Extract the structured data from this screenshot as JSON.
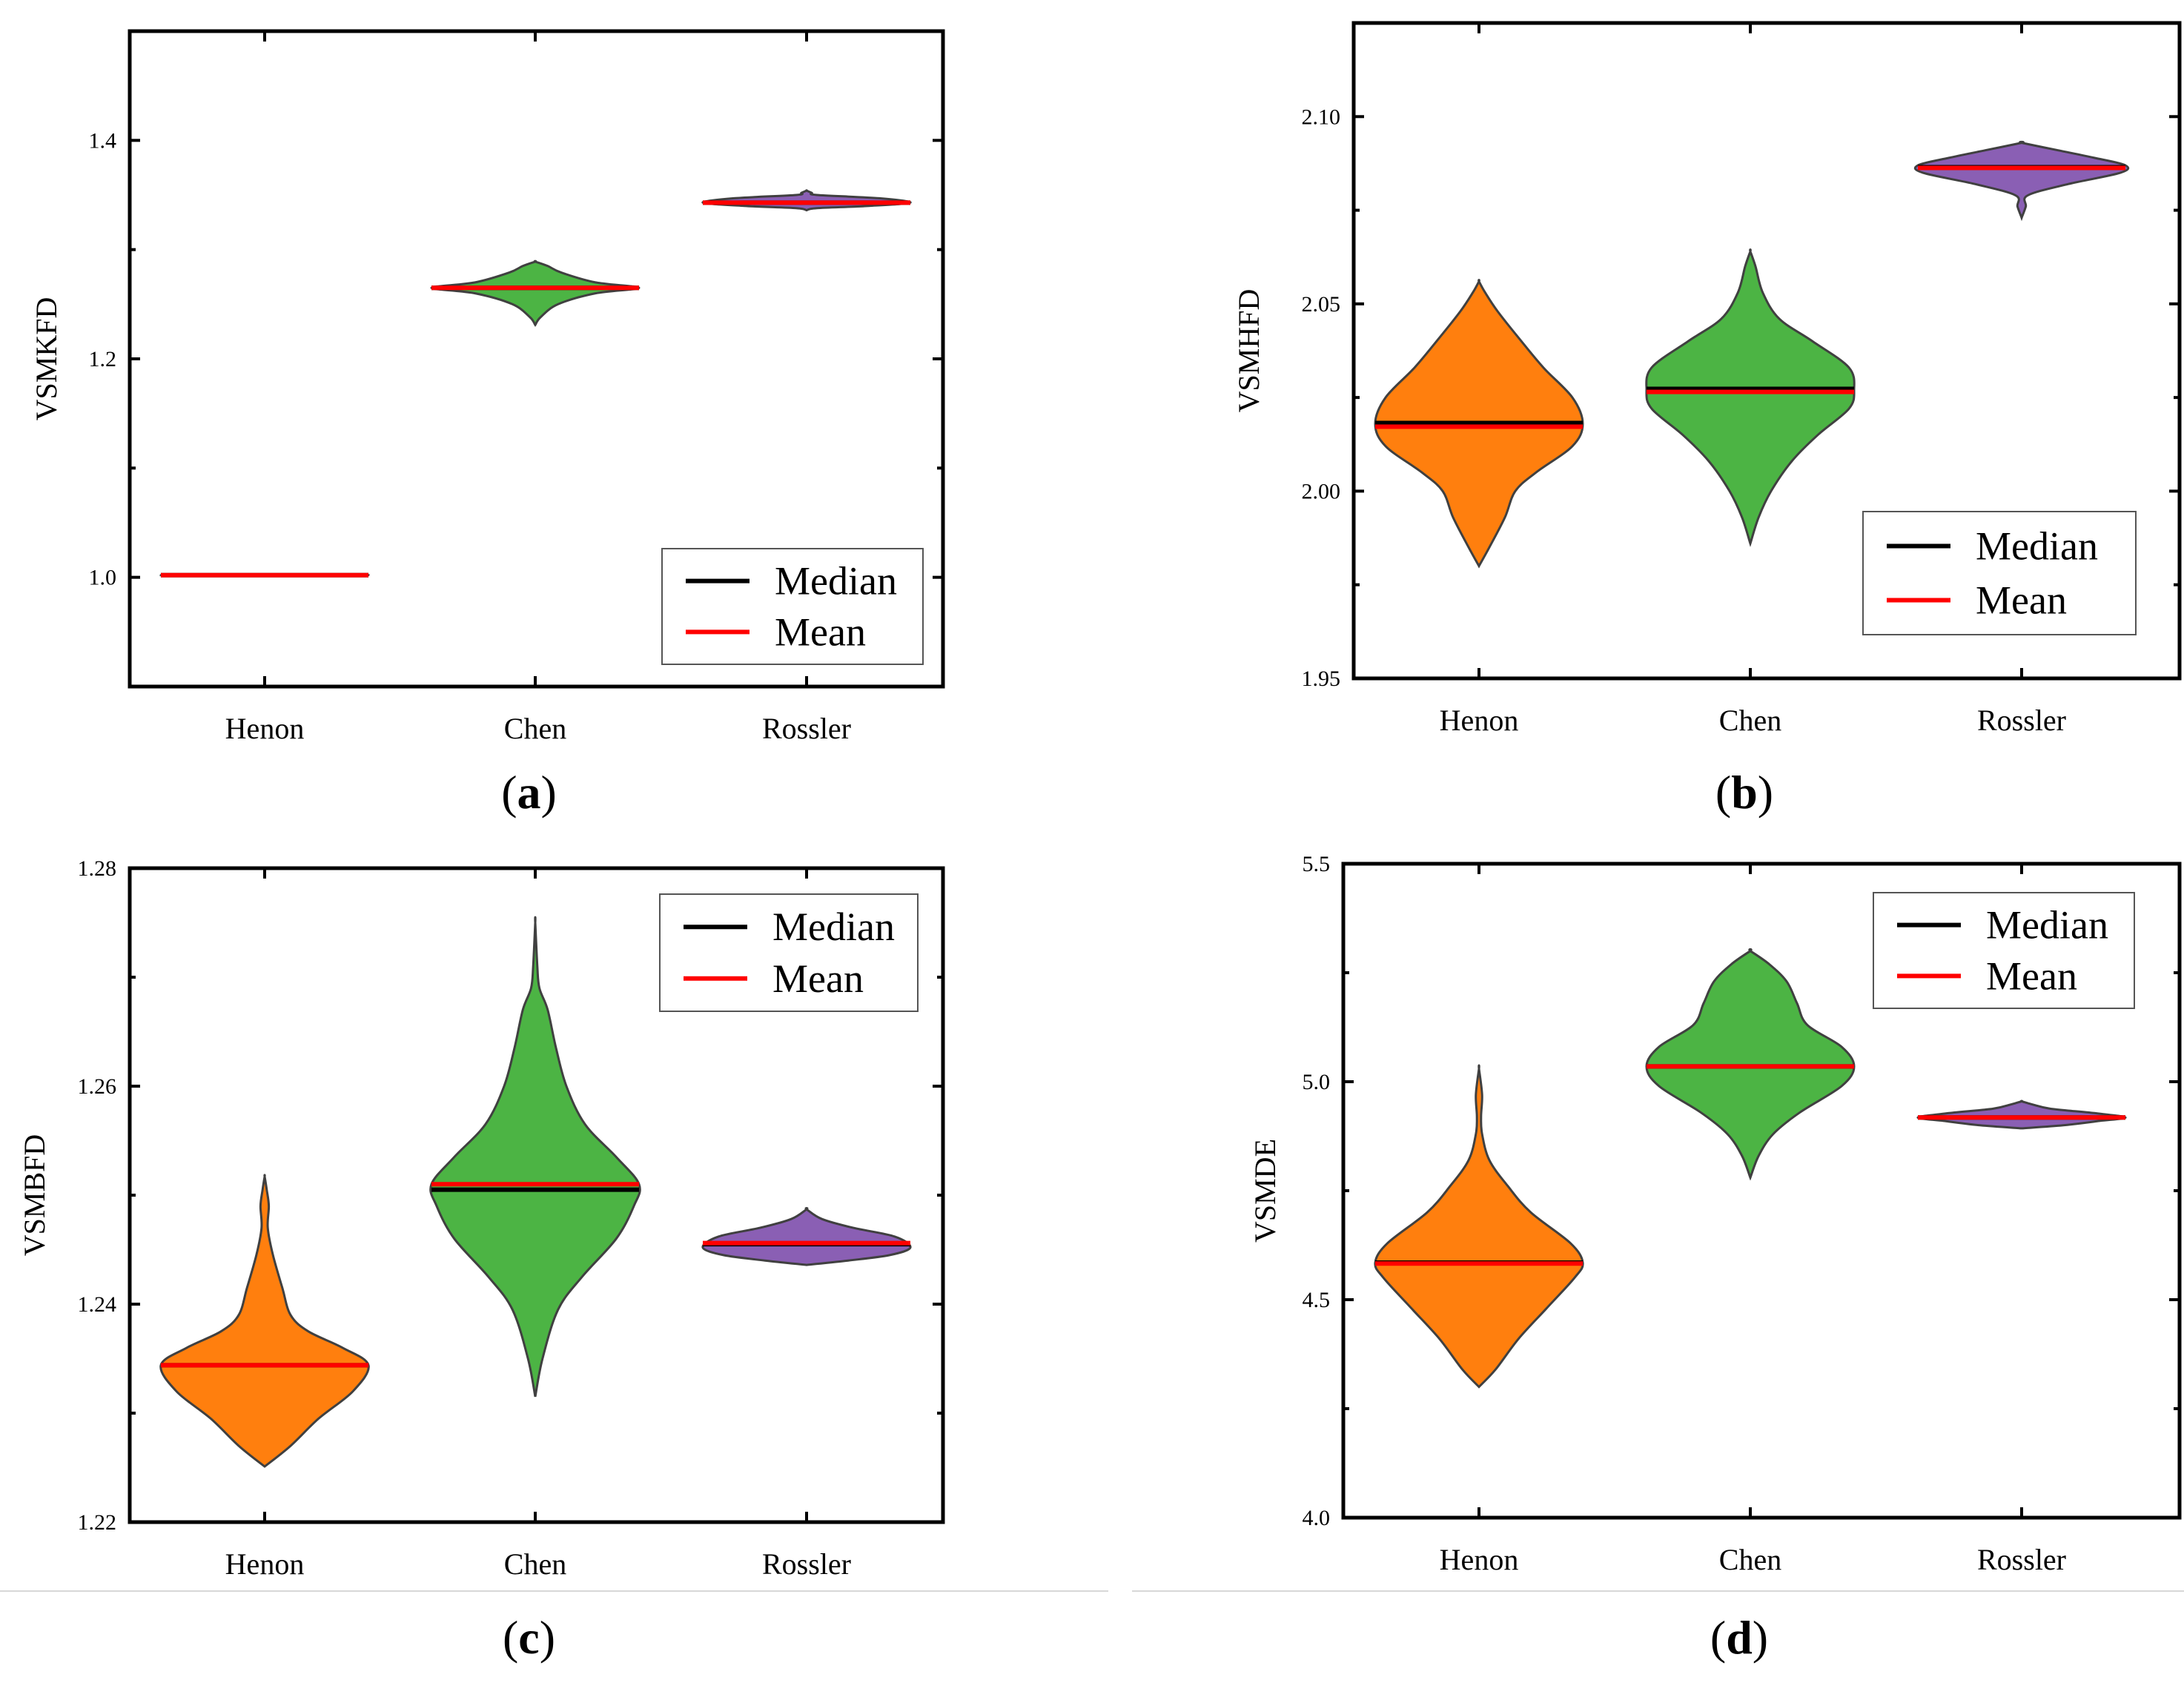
{
  "figure": {
    "panel_labels": [
      {
        "id": "a",
        "text": "a"
      },
      {
        "id": "b",
        "text": "b"
      },
      {
        "id": "c",
        "text": "c"
      },
      {
        "id": "d",
        "text": "d"
      }
    ]
  },
  "colors": {
    "Henon": "#ff7f0e",
    "Chen": "#4cb444",
    "Rossler": "#8a5fb4",
    "median": "#000000",
    "mean": "#ff0000"
  },
  "chart_data": [
    {
      "id": "a",
      "type": "violin",
      "title": "",
      "xlabel": "",
      "ylabel": "VSMKFD",
      "categories": [
        "Henon",
        "Chen",
        "Rossler"
      ],
      "ylim": [
        0.9,
        1.5
      ],
      "yticks": [
        1.0,
        1.2,
        1.4
      ],
      "ytick_labels": [
        "1.0",
        "1.2",
        "1.4"
      ],
      "legend": {
        "position": "bottom-right",
        "entries": [
          "Median",
          "Mean"
        ]
      },
      "series": [
        {
          "name": "Henon",
          "color": "#ff7f0e",
          "median": 1.002,
          "mean": 1.002,
          "profile": [
            [
              1.0016,
              0
            ],
            [
              1.002,
              1
            ],
            [
              1.0024,
              0
            ]
          ]
        },
        {
          "name": "Chen",
          "color": "#4cb444",
          "median": 1.265,
          "mean": 1.265,
          "profile": [
            [
              1.231,
              0
            ],
            [
              1.238,
              0.05
            ],
            [
              1.25,
              0.22
            ],
            [
              1.26,
              0.58
            ],
            [
              1.265,
              1
            ],
            [
              1.27,
              0.58
            ],
            [
              1.279,
              0.25
            ],
            [
              1.285,
              0.12
            ],
            [
              1.289,
              0
            ]
          ]
        },
        {
          "name": "Rossler",
          "color": "#8a5fb4",
          "median": 1.343,
          "mean": 1.343,
          "profile": [
            [
              1.336,
              0
            ],
            [
              1.338,
              0.1
            ],
            [
              1.34,
              0.6
            ],
            [
              1.343,
              1
            ],
            [
              1.347,
              0.7
            ],
            [
              1.35,
              0.1
            ],
            [
              1.352,
              0.05
            ],
            [
              1.354,
              0
            ]
          ]
        }
      ]
    },
    {
      "id": "b",
      "type": "violin",
      "title": "",
      "xlabel": "",
      "ylabel": "VSMHFD",
      "categories": [
        "Henon",
        "Chen",
        "Rossler"
      ],
      "ylim": [
        1.95,
        2.125
      ],
      "yticks": [
        1.95,
        2.0,
        2.05,
        2.1
      ],
      "ytick_labels": [
        "1.95",
        "2.00",
        "2.05",
        "2.10"
      ],
      "legend": {
        "position": "bottom-right",
        "entries": [
          "Median",
          "Mean"
        ]
      },
      "series": [
        {
          "name": "Henon",
          "color": "#ff7f0e",
          "median": 2.0182,
          "mean": 2.0172,
          "profile": [
            [
              1.98,
              0
            ],
            [
              1.985,
              0.1
            ],
            [
              1.993,
              0.25
            ],
            [
              2.0,
              0.35
            ],
            [
              2.005,
              0.55
            ],
            [
              2.012,
              0.9
            ],
            [
              2.018,
              1
            ],
            [
              2.025,
              0.9
            ],
            [
              2.033,
              0.62
            ],
            [
              2.041,
              0.38
            ],
            [
              2.048,
              0.18
            ],
            [
              2.053,
              0.06
            ],
            [
              2.056,
              0
            ]
          ]
        },
        {
          "name": "Chen",
          "color": "#4cb444",
          "median": 2.0273,
          "mean": 2.0265,
          "profile": [
            [
              1.986,
              0
            ],
            [
              1.993,
              0.08
            ],
            [
              2.0,
              0.2
            ],
            [
              2.008,
              0.4
            ],
            [
              2.015,
              0.65
            ],
            [
              2.022,
              0.95
            ],
            [
              2.027,
              1
            ],
            [
              2.033,
              0.95
            ],
            [
              2.04,
              0.6
            ],
            [
              2.046,
              0.28
            ],
            [
              2.053,
              0.12
            ],
            [
              2.06,
              0.05
            ],
            [
              2.064,
              0
            ]
          ]
        },
        {
          "name": "Rossler",
          "color": "#8a5fb4",
          "median": 2.0865,
          "mean": 2.0863,
          "profile": [
            [
              2.073,
              0
            ],
            [
              2.076,
              0.04
            ],
            [
              2.079,
              0.06
            ],
            [
              2.082,
              0.45
            ],
            [
              2.085,
              0.95
            ],
            [
              2.087,
              1
            ],
            [
              2.089,
              0.7
            ],
            [
              2.091,
              0.35
            ],
            [
              2.093,
              0
            ]
          ]
        }
      ]
    },
    {
      "id": "c",
      "type": "violin",
      "title": "",
      "xlabel": "",
      "ylabel": "VSMBFD",
      "categories": [
        "Henon",
        "Chen",
        "Rossler"
      ],
      "ylim": [
        1.22,
        1.28
      ],
      "yticks": [
        1.22,
        1.24,
        1.26,
        1.28
      ],
      "ytick_labels": [
        "1.22",
        "1.24",
        "1.26",
        "1.28"
      ],
      "legend": {
        "position": "top-right",
        "entries": [
          "Median",
          "Mean"
        ]
      },
      "series": [
        {
          "name": "Henon",
          "color": "#ff7f0e",
          "median": 1.2344,
          "mean": 1.2344,
          "profile": [
            [
              1.2251,
              0
            ],
            [
              1.227,
              0.25
            ],
            [
              1.2295,
              0.52
            ],
            [
              1.232,
              0.85
            ],
            [
              1.2344,
              1
            ],
            [
              1.236,
              0.75
            ],
            [
              1.2375,
              0.42
            ],
            [
              1.239,
              0.25
            ],
            [
              1.2415,
              0.17
            ],
            [
              1.2445,
              0.08
            ],
            [
              1.247,
              0.03
            ],
            [
              1.249,
              0.04
            ],
            [
              1.2505,
              0.02
            ],
            [
              1.2517,
              0
            ]
          ]
        },
        {
          "name": "Chen",
          "color": "#4cb444",
          "median": 1.2505,
          "mean": 1.251,
          "profile": [
            [
              1.2315,
              0
            ],
            [
              1.235,
              0.07
            ],
            [
              1.2395,
              0.22
            ],
            [
              1.2425,
              0.45
            ],
            [
              1.246,
              0.78
            ],
            [
              1.249,
              0.95
            ],
            [
              1.251,
              1
            ],
            [
              1.2535,
              0.78
            ],
            [
              1.2565,
              0.48
            ],
            [
              1.26,
              0.3
            ],
            [
              1.2635,
              0.2
            ],
            [
              1.267,
              0.12
            ],
            [
              1.269,
              0.04
            ],
            [
              1.271,
              0.02
            ],
            [
              1.275,
              0
            ]
          ]
        },
        {
          "name": "Rossler",
          "color": "#8a5fb4",
          "median": 1.2455,
          "mean": 1.2456,
          "profile": [
            [
              1.2436,
              0
            ],
            [
              1.244,
              0.4
            ],
            [
              1.2445,
              0.8
            ],
            [
              1.2452,
              1
            ],
            [
              1.2462,
              0.85
            ],
            [
              1.247,
              0.45
            ],
            [
              1.2478,
              0.15
            ],
            [
              1.2487,
              0
            ]
          ]
        }
      ]
    },
    {
      "id": "d",
      "type": "violin",
      "title": "",
      "xlabel": "",
      "ylabel": "VSMDE",
      "categories": [
        "Henon",
        "Chen",
        "Rossler"
      ],
      "ylim": [
        4.0,
        5.5
      ],
      "yticks": [
        4.0,
        4.5,
        5.0,
        5.5
      ],
      "ytick_labels": [
        "4.0",
        "4.5",
        "5.0",
        "5.5"
      ],
      "legend": {
        "position": "top-right",
        "entries": [
          "Median",
          "Mean"
        ]
      },
      "series": [
        {
          "name": "Henon",
          "color": "#ff7f0e",
          "median": 4.585,
          "mean": 4.583,
          "profile": [
            [
              4.3,
              0
            ],
            [
              4.34,
              0.16
            ],
            [
              4.41,
              0.38
            ],
            [
              4.48,
              0.65
            ],
            [
              4.55,
              0.92
            ],
            [
              4.585,
              1
            ],
            [
              4.63,
              0.88
            ],
            [
              4.7,
              0.5
            ],
            [
              4.76,
              0.28
            ],
            [
              4.82,
              0.1
            ],
            [
              4.88,
              0.03
            ],
            [
              4.92,
              0.02
            ],
            [
              4.97,
              0.03
            ],
            [
              5.03,
              0
            ]
          ]
        },
        {
          "name": "Chen",
          "color": "#4cb444",
          "median": 5.035,
          "mean": 5.035,
          "profile": [
            [
              4.78,
              0
            ],
            [
              4.83,
              0.08
            ],
            [
              4.88,
              0.22
            ],
            [
              4.93,
              0.48
            ],
            [
              4.99,
              0.88
            ],
            [
              5.035,
              1
            ],
            [
              5.08,
              0.88
            ],
            [
              5.13,
              0.55
            ],
            [
              5.18,
              0.45
            ],
            [
              5.23,
              0.35
            ],
            [
              5.27,
              0.18
            ],
            [
              5.3,
              0
            ]
          ]
        },
        {
          "name": "Rossler",
          "color": "#8a5fb4",
          "median": 4.918,
          "mean": 4.918,
          "profile": [
            [
              4.893,
              0
            ],
            [
              4.9,
              0.4
            ],
            [
              4.91,
              0.75
            ],
            [
              4.918,
              1
            ],
            [
              4.928,
              0.7
            ],
            [
              4.938,
              0.28
            ],
            [
              4.948,
              0.1
            ],
            [
              4.955,
              0
            ]
          ]
        }
      ]
    }
  ]
}
